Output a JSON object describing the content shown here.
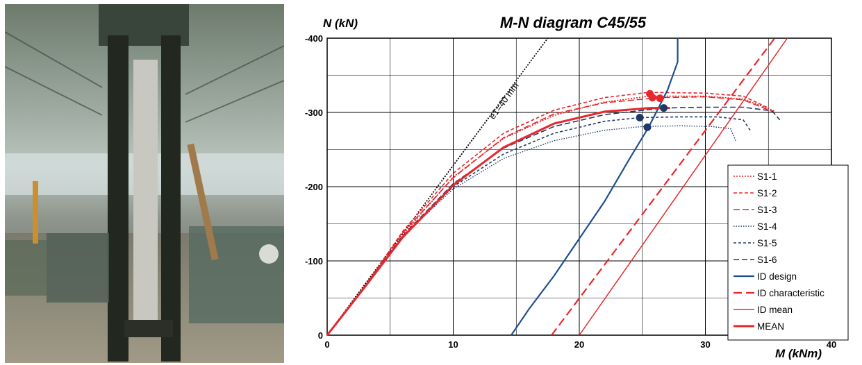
{
  "photo": {
    "description_icon": "laboratory-column-test-photo-icon"
  },
  "chart_data": {
    "type": "line",
    "title": "M-N diagram C45/55",
    "xlabel": "M (kNm)",
    "ylabel": "N (kN)",
    "xlim": [
      0,
      40
    ],
    "ylim": [
      0,
      -400
    ],
    "xticks": [
      0,
      10,
      20,
      30,
      40
    ],
    "yticks": [
      0,
      -100,
      -200,
      -300,
      -400
    ],
    "x_tick_labels": [
      "0",
      "10",
      "20",
      "30",
      "40"
    ],
    "y_tick_labels": [
      "0",
      "-100",
      "-200",
      "-300",
      "-400"
    ],
    "grid": true,
    "legend_position": "bottom-right",
    "annotation": "e1=40 mm",
    "series": [
      {
        "name": "S1-1",
        "color": "#e8262b",
        "dash": "2,2",
        "width": 1.6,
        "x": [
          0,
          3,
          6,
          10,
          14,
          18,
          22,
          25.6,
          30,
          33,
          35.5
        ],
        "y": [
          0,
          -65,
          -135,
          -213,
          -265,
          -296,
          -314,
          -322,
          -322,
          -318,
          -302
        ]
      },
      {
        "name": "S1-2",
        "color": "#e8262b",
        "dash": "5,3",
        "width": 1.6,
        "x": [
          0,
          3,
          6,
          10,
          14,
          18,
          22,
          25.5,
          30,
          33,
          35
        ],
        "y": [
          0,
          -66,
          -140,
          -218,
          -272,
          -303,
          -320,
          -327,
          -326,
          -322,
          -306
        ]
      },
      {
        "name": "S1-3",
        "color": "#e8262b",
        "dash": "9,4",
        "width": 1.6,
        "x": [
          0,
          3,
          6,
          10,
          14,
          18,
          22,
          26.4,
          30,
          33,
          35.5
        ],
        "y": [
          0,
          -66,
          -138,
          -212,
          -266,
          -298,
          -313,
          -320,
          -321,
          -317,
          -300
        ]
      },
      {
        "name": "S1-4",
        "color": "#1f3864",
        "dash": "1.5,2",
        "width": 1.4,
        "x": [
          0,
          3,
          6,
          10,
          14,
          18,
          22,
          25,
          28,
          30.5,
          32,
          32.4
        ],
        "y": [
          0,
          -66,
          -133,
          -197,
          -238,
          -262,
          -276,
          -281,
          -282,
          -281,
          -278,
          -262
        ]
      },
      {
        "name": "S1-5",
        "color": "#1f3864",
        "dash": "4,3",
        "width": 1.6,
        "x": [
          0,
          3,
          6,
          10,
          14,
          18,
          22,
          24.8,
          28,
          31,
          33,
          33.6
        ],
        "y": [
          0,
          -66,
          -133,
          -200,
          -244,
          -272,
          -288,
          -293,
          -294,
          -294,
          -290,
          -275
        ]
      },
      {
        "name": "S1-6",
        "color": "#1f3864",
        "dash": "8,4",
        "width": 1.6,
        "x": [
          0,
          3,
          6,
          10,
          14,
          18,
          22,
          26.7,
          30,
          33,
          35.3,
          35.9
        ],
        "y": [
          0,
          -66,
          -134,
          -204,
          -252,
          -281,
          -297,
          -306,
          -307,
          -307,
          -302,
          -290
        ]
      },
      {
        "name": "ID design",
        "color": "#1f4e8c",
        "dash": "",
        "width": 2.2,
        "x": [
          14.6,
          16,
          18,
          20,
          22,
          24,
          25.5,
          27,
          27.8,
          27.8
        ],
        "y": [
          0,
          -35,
          -80,
          -130,
          -180,
          -238,
          -280,
          -330,
          -368,
          -400
        ]
      },
      {
        "name": "ID characteristic",
        "color": "#e8262b",
        "dash": "12,6",
        "width": 2.2,
        "x": [
          17.8,
          35.5
        ],
        "y": [
          0,
          -400
        ]
      },
      {
        "name": "ID mean",
        "color": "#e8262b",
        "dash": "",
        "width": 1.5,
        "x": [
          20,
          36.5
        ],
        "y": [
          0,
          -400
        ]
      },
      {
        "name": "MEAN",
        "color": "#e8262b",
        "dash": "",
        "width": 3,
        "x": [
          0,
          3,
          6,
          10,
          14,
          18,
          22,
          25.6,
          27.2
        ],
        "y": [
          0,
          -65,
          -132,
          -202,
          -253,
          -285,
          -301,
          -306,
          -306
        ]
      }
    ],
    "reference_line": {
      "color": "#000000",
      "dash": "2,2",
      "width": 1.8,
      "x": [
        0,
        17.5
      ],
      "y": [
        0,
        -400
      ]
    },
    "markers": [
      {
        "color": "#e8262b",
        "x": 25.6,
        "y": -325
      },
      {
        "color": "#e8262b",
        "x": 25.8,
        "y": -320
      },
      {
        "color": "#e8262b",
        "x": 26.4,
        "y": -319
      },
      {
        "color": "#1f3864",
        "x": 26.7,
        "y": -306
      },
      {
        "color": "#1f3864",
        "x": 24.8,
        "y": -293
      },
      {
        "color": "#1f3864",
        "x": 25.4,
        "y": -280
      }
    ]
  }
}
